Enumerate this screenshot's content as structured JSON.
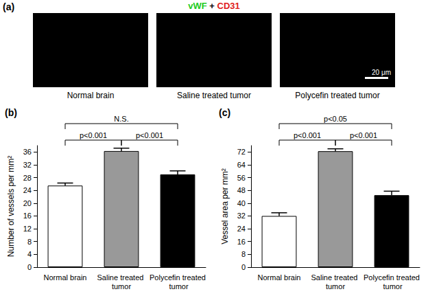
{
  "panel_a": {
    "panel_label": "(a)",
    "stain_label": [
      {
        "text": "vWF",
        "color": "#22cc22"
      },
      {
        "text": " + ",
        "color": "#000000"
      },
      {
        "text": "CD31",
        "color": "#e02020"
      }
    ],
    "images": [
      "Normal brain",
      "Saline treated tumor",
      "Polycefin treated tumor"
    ],
    "scale_bar": "20 μm"
  },
  "chart_data": [
    {
      "type": "bar",
      "panel_label": "(b)",
      "y_label": "Number of vessels per mm²",
      "categories": [
        "Normal brain",
        "Saline treated tumor",
        "Polycefin treated tumor"
      ],
      "values": [
        25.5,
        36.3,
        29
      ],
      "errors": [
        0.8,
        0.9,
        1.1
      ],
      "colors": [
        "#ffffff",
        "#999999",
        "#000000"
      ],
      "ylim": [
        0,
        38
      ],
      "yticks": [
        0,
        4,
        8,
        12,
        16,
        20,
        24,
        28,
        32,
        36
      ],
      "grid": false,
      "significance": [
        {
          "from": 0,
          "to": 1,
          "label": "p<0.001"
        },
        {
          "from": 1,
          "to": 2,
          "label": "p<0.001"
        },
        {
          "from": 0,
          "to": 2,
          "label": "N.S."
        }
      ]
    },
    {
      "type": "bar",
      "panel_label": "(c)",
      "y_label": "Vessel area per mm²",
      "categories": [
        "Normal brain",
        "Saline treated tumor",
        "Polycefin treated tumor"
      ],
      "values": [
        32,
        72.5,
        45
      ],
      "errors": [
        2,
        1.5,
        2.5
      ],
      "colors": [
        "#ffffff",
        "#999999",
        "#000000"
      ],
      "ylim": [
        0,
        76
      ],
      "yticks": [
        0,
        8,
        16,
        24,
        32,
        40,
        48,
        56,
        64,
        72
      ],
      "grid": false,
      "significance": [
        {
          "from": 0,
          "to": 1,
          "label": "p<0.001"
        },
        {
          "from": 1,
          "to": 2,
          "label": "p<0.001"
        },
        {
          "from": 0,
          "to": 2,
          "label": "p<0.05"
        }
      ]
    }
  ]
}
